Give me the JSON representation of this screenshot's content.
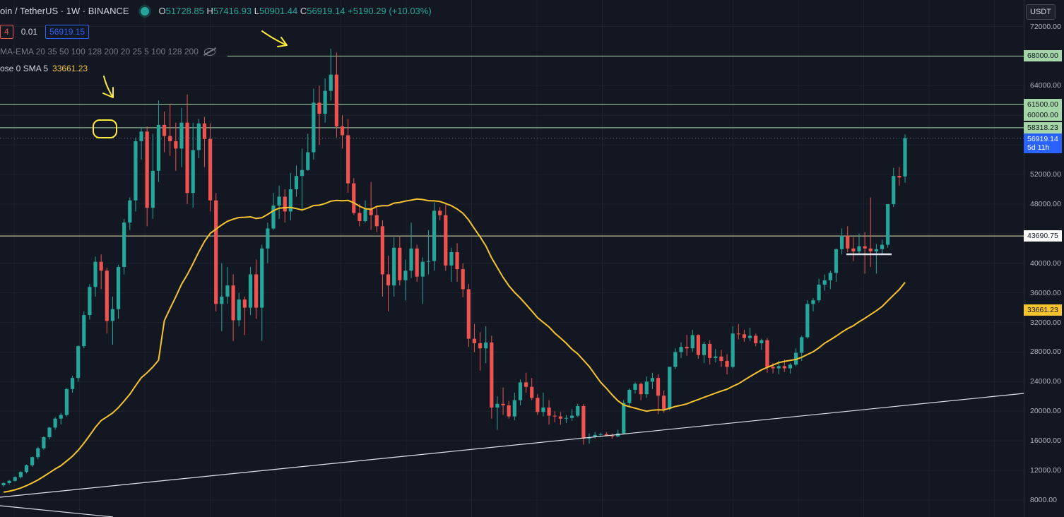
{
  "header": {
    "title": "oin / TetherUS · 1W · BINANCE",
    "o_label": "O",
    "o": "51728.85",
    "h_label": "H",
    "h": "57416.93",
    "l_label": "L",
    "l": "50901.44",
    "c_label": "C",
    "c": "56919.14",
    "change": "+5190.29 (+10.03%)"
  },
  "order_row": {
    "left": "4",
    "spread": "0.01",
    "price": "56919.15"
  },
  "indicator_ema": "MA-EMA 20 35 50 100 128 200 20 25 5 100 128 200",
  "indicator_sma": {
    "label": "ose 0 SMA 5",
    "value": "33661.23"
  },
  "currency": "USDT",
  "axis_ticks": [
    "72000.00",
    "64000.00",
    "52000.00",
    "48000.00",
    "40000.00",
    "36000.00",
    "32000.00",
    "28000.00",
    "24000.00",
    "20000.00",
    "16000.00",
    "12000.00",
    "8000.00"
  ],
  "price_tags": [
    {
      "label": "68000.00",
      "kind": "line"
    },
    {
      "label": "61500.00",
      "kind": "line"
    },
    {
      "label": "60000.00",
      "kind": "line"
    },
    {
      "label": "58318.23",
      "kind": "line"
    },
    {
      "label": "56919.14",
      "sub": "5d 11h",
      "kind": "last"
    },
    {
      "label": "43690.75",
      "kind": "white"
    },
    {
      "label": "33661.23",
      "kind": "sma"
    }
  ],
  "colors": {
    "up": "#26a69a",
    "down": "#ef5350",
    "sma": "#f7c42d",
    "bg": "#131722",
    "level": "#a5d6a7",
    "annot": "#ffeb3b"
  },
  "chart_data": {
    "type": "candlestick",
    "ylim": [
      8000,
      72000
    ],
    "horizontal_levels": [
      68000,
      61500,
      58318.23,
      43690.75
    ],
    "candles": [
      [
        10000,
        10400,
        9800,
        10300
      ],
      [
        10300,
        10700,
        10100,
        10600
      ],
      [
        10600,
        11200,
        10500,
        11100
      ],
      [
        11100,
        11900,
        10900,
        11800
      ],
      [
        11800,
        12800,
        11600,
        12700
      ],
      [
        12700,
        13900,
        12500,
        13800
      ],
      [
        13800,
        15200,
        13500,
        15000
      ],
      [
        15000,
        16600,
        14800,
        16500
      ],
      [
        16500,
        17900,
        16200,
        17800
      ],
      [
        17800,
        19200,
        17500,
        19000
      ],
      [
        19000,
        19800,
        18200,
        19500
      ],
      [
        19500,
        23100,
        19300,
        23000
      ],
      [
        23000,
        24800,
        22500,
        24500
      ],
      [
        24500,
        28900,
        24000,
        28800
      ],
      [
        28800,
        33500,
        28500,
        33000
      ],
      [
        33000,
        37200,
        32400,
        36800
      ],
      [
        36800,
        40900,
        35500,
        40200
      ],
      [
        40200,
        41200,
        36500,
        39000
      ],
      [
        39000,
        39400,
        30500,
        32200
      ],
      [
        32200,
        35500,
        29000,
        33800
      ],
      [
        33800,
        39800,
        32500,
        39500
      ],
      [
        39500,
        46000,
        38500,
        45500
      ],
      [
        45500,
        48900,
        44500,
        48500
      ],
      [
        48500,
        57000,
        47000,
        56500
      ],
      [
        56500,
        58400,
        54000,
        57800
      ],
      [
        57800,
        58500,
        45000,
        47500
      ],
      [
        47500,
        57500,
        46000,
        52500
      ],
      [
        52500,
        62000,
        51000,
        58700
      ],
      [
        58700,
        60500,
        55000,
        57200
      ],
      [
        57200,
        61500,
        54500,
        56500
      ],
      [
        56500,
        59000,
        52500,
        55500
      ],
      [
        55500,
        61000,
        53000,
        59000
      ],
      [
        59000,
        62800,
        48000,
        49500
      ],
      [
        49500,
        59000,
        47500,
        55300
      ],
      [
        55300,
        59500,
        54200,
        58900
      ],
      [
        58900,
        59800,
        53000,
        56800
      ],
      [
        56800,
        58900,
        47000,
        48500
      ],
      [
        48500,
        49500,
        33500,
        34500
      ],
      [
        34500,
        40000,
        30800,
        35500
      ],
      [
        35500,
        39500,
        34500,
        37000
      ],
      [
        37000,
        38500,
        29500,
        32300
      ],
      [
        32300,
        36000,
        31500,
        35100
      ],
      [
        35100,
        35500,
        30300,
        34000
      ],
      [
        34000,
        39500,
        33000,
        38500
      ],
      [
        38500,
        40500,
        32500,
        34000
      ],
      [
        34000,
        42500,
        29500,
        42000
      ],
      [
        42000,
        45500,
        40000,
        44700
      ],
      [
        44700,
        49500,
        44500,
        47800
      ],
      [
        47800,
        50500,
        46000,
        49000
      ],
      [
        49000,
        50000,
        45500,
        47000
      ],
      [
        47000,
        52200,
        45800,
        50000
      ],
      [
        50000,
        53200,
        49000,
        51800
      ],
      [
        51800,
        55500,
        47200,
        52600
      ],
      [
        52600,
        57500,
        52500,
        55000
      ],
      [
        55000,
        63600,
        54000,
        61700
      ],
      [
        61700,
        64000,
        56000,
        60200
      ],
      [
        60200,
        65000,
        59000,
        63300
      ],
      [
        63300,
        69000,
        62000,
        65500
      ],
      [
        65500,
        68500,
        57000,
        58500
      ],
      [
        58500,
        60000,
        55500,
        57300
      ],
      [
        57300,
        59500,
        49500,
        50800
      ],
      [
        50800,
        51500,
        46500,
        46800
      ],
      [
        46800,
        48000,
        45000,
        45700
      ],
      [
        45700,
        48500,
        45500,
        47300
      ],
      [
        47300,
        51000,
        44500,
        46500
      ],
      [
        46500,
        47800,
        44200,
        45000
      ],
      [
        45000,
        45800,
        35500,
        38500
      ],
      [
        38500,
        41000,
        33500,
        37000
      ],
      [
        37000,
        43500,
        35500,
        42100
      ],
      [
        42100,
        43600,
        37000,
        37700
      ],
      [
        37700,
        40500,
        35000,
        39000
      ],
      [
        39000,
        45500,
        38000,
        42000
      ],
      [
        42000,
        42500,
        37500,
        38200
      ],
      [
        38200,
        40800,
        34500,
        40200
      ],
      [
        40200,
        44500,
        38500,
        40300
      ],
      [
        40300,
        48200,
        39000,
        47100
      ],
      [
        47100,
        47600,
        45800,
        46500
      ],
      [
        46500,
        48200,
        39000,
        39700
      ],
      [
        39700,
        42100,
        37500,
        41500
      ],
      [
        41500,
        42700,
        37500,
        39200
      ],
      [
        39200,
        40000,
        35400,
        36500
      ],
      [
        36500,
        37200,
        28700,
        29800
      ],
      [
        29800,
        31800,
        28000,
        29200
      ],
      [
        29200,
        30700,
        25500,
        28500
      ],
      [
        28500,
        31500,
        26500,
        29300
      ],
      [
        29300,
        30200,
        19000,
        20500
      ],
      [
        20500,
        22000,
        17500,
        21000
      ],
      [
        21000,
        23200,
        19500,
        20800
      ],
      [
        20800,
        21400,
        19000,
        19300
      ],
      [
        19300,
        22500,
        18800,
        21500
      ],
      [
        21500,
        24300,
        20800,
        23900
      ],
      [
        23900,
        25200,
        22500,
        23300
      ],
      [
        23300,
        24500,
        21500,
        21800
      ],
      [
        21800,
        22300,
        19500,
        19900
      ],
      [
        19900,
        22500,
        19300,
        20500
      ],
      [
        20500,
        21500,
        18200,
        19400
      ],
      [
        19400,
        20000,
        18500,
        19300
      ],
      [
        19300,
        19900,
        18200,
        19000
      ],
      [
        19000,
        19500,
        18400,
        19100
      ],
      [
        19100,
        20300,
        18700,
        19400
      ],
      [
        19400,
        21000,
        19200,
        20700
      ],
      [
        20700,
        21000,
        15500,
        16300
      ],
      [
        16300,
        17000,
        15600,
        16500
      ],
      [
        16500,
        17200,
        16300,
        16800
      ],
      [
        16800,
        17100,
        16500,
        16900
      ],
      [
        16900,
        17200,
        16600,
        16700
      ],
      [
        16700,
        17000,
        16300,
        16600
      ],
      [
        16600,
        17500,
        16500,
        17000
      ],
      [
        17000,
        21500,
        16900,
        21100
      ],
      [
        21100,
        23100,
        20500,
        22900
      ],
      [
        22900,
        23900,
        22400,
        23700
      ],
      [
        23700,
        23900,
        21500,
        22300
      ],
      [
        22300,
        24700,
        21800,
        24000
      ],
      [
        24000,
        25200,
        23000,
        24500
      ],
      [
        24500,
        25000,
        19600,
        22100
      ],
      [
        22100,
        22800,
        19800,
        20300
      ],
      [
        20300,
        26000,
        20100,
        26000
      ],
      [
        26000,
        28500,
        25700,
        28000
      ],
      [
        28000,
        29300,
        27200,
        28700
      ],
      [
        28700,
        30300,
        27500,
        28500
      ],
      [
        28500,
        31000,
        28000,
        30300
      ],
      [
        30300,
        30400,
        27100,
        27600
      ],
      [
        27600,
        29400,
        26500,
        29100
      ],
      [
        29100,
        29600,
        26300,
        27200
      ],
      [
        27200,
        28400,
        26600,
        27400
      ],
      [
        27400,
        28300,
        26000,
        26800
      ],
      [
        26800,
        27700,
        25000,
        26000
      ],
      [
        26000,
        31500,
        25800,
        30500
      ],
      [
        30500,
        31800,
        29700,
        30400
      ],
      [
        30400,
        31000,
        29400,
        29900
      ],
      [
        29900,
        31300,
        29500,
        30200
      ],
      [
        30200,
        30500,
        28800,
        29200
      ],
      [
        29200,
        29800,
        28300,
        29600
      ],
      [
        29600,
        29900,
        25200,
        26000
      ],
      [
        26000,
        26500,
        25100,
        25800
      ],
      [
        25800,
        26800,
        25000,
        26100
      ],
      [
        26100,
        27000,
        25300,
        25800
      ],
      [
        25800,
        26500,
        25100,
        26300
      ],
      [
        26300,
        28500,
        26100,
        27900
      ],
      [
        27900,
        30200,
        26800,
        30000
      ],
      [
        30000,
        35000,
        29800,
        34500
      ],
      [
        34500,
        35300,
        33500,
        35000
      ],
      [
        35000,
        37900,
        34700,
        37100
      ],
      [
        37100,
        38500,
        36300,
        37700
      ],
      [
        37700,
        39000,
        36500,
        38700
      ],
      [
        38700,
        42000,
        37500,
        41900
      ],
      [
        41900,
        44700,
        41200,
        43700
      ],
      [
        43700,
        45000,
        41500,
        42000
      ],
      [
        42000,
        43500,
        40300,
        41600
      ],
      [
        41600,
        44000,
        41200,
        42300
      ],
      [
        42300,
        44200,
        38600,
        42000
      ],
      [
        42000,
        48900,
        39500,
        41600
      ],
      [
        41600,
        42600,
        38600,
        41900
      ],
      [
        41900,
        43200,
        41200,
        42500
      ],
      [
        42500,
        48000,
        42100,
        48000
      ],
      [
        48000,
        52900,
        47600,
        51800
      ],
      [
        51800,
        53000,
        50500,
        51600
      ],
      [
        51728.85,
        57416.93,
        50901.44,
        56919.14
      ]
    ],
    "sma_path_hint": "yellow moving average",
    "annotations": [
      {
        "type": "arrow",
        "label": ""
      },
      {
        "type": "circle",
        "label": ""
      },
      {
        "type": "arrow",
        "label": ""
      }
    ]
  }
}
